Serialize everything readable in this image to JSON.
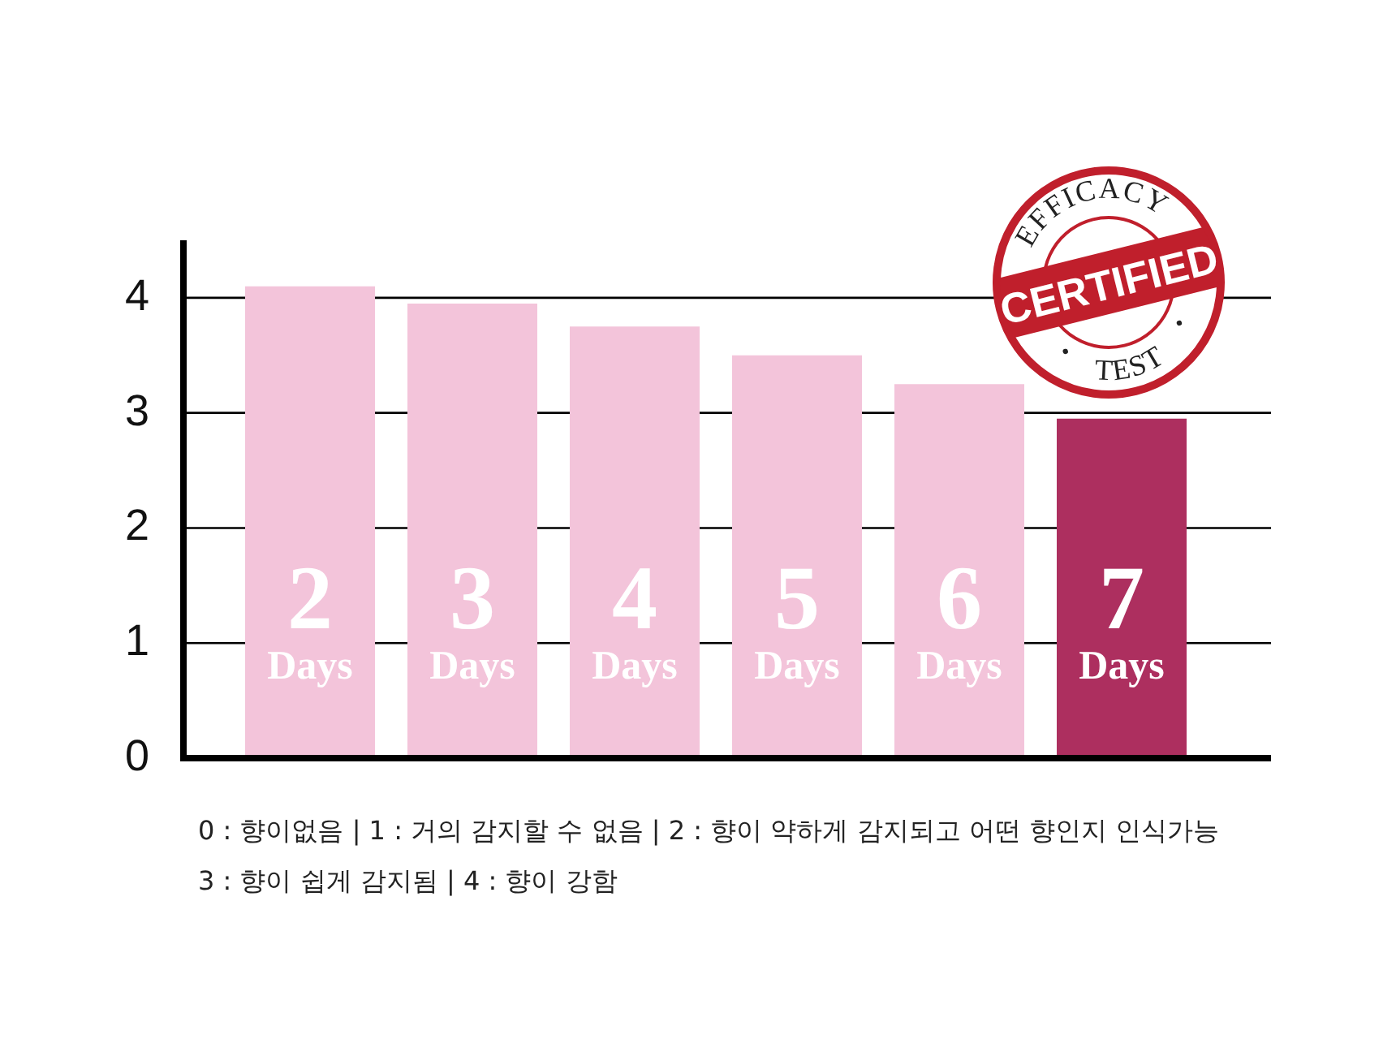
{
  "chart_data": {
    "type": "bar",
    "categories": [
      "2 Days",
      "3 Days",
      "4 Days",
      "5 Days",
      "6 Days",
      "7 Days"
    ],
    "values": [
      4.1,
      3.95,
      3.75,
      3.5,
      3.25,
      2.95
    ],
    "colors": [
      "#f3c4da",
      "#f3c4da",
      "#f3c4da",
      "#f3c4da",
      "#f3c4da",
      "#ad2f5f"
    ],
    "ylim": [
      0,
      4.5
    ],
    "yticks": [
      0,
      1,
      2,
      3,
      4
    ],
    "grid": "y",
    "legend": false,
    "annotations": [
      "EFFICACY",
      "CERTIFIED",
      "TEST",
      "0 : 향이없음 | 1 : 거의 감지할 수 없음 | 2 : 향이 약하게 감지되고 어떤 향인지 인식가능",
      "3 : 향이 쉽게 감지됨 | 4 : 향이 강함"
    ]
  }
}
